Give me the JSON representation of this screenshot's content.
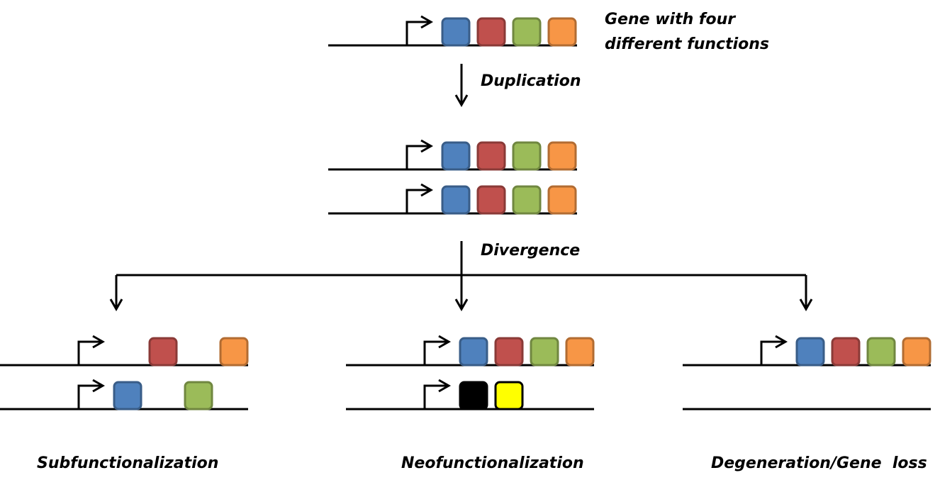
{
  "labels": {
    "gene_line1": "Gene with four",
    "gene_line2": "different functions",
    "duplication": "Duplication",
    "divergence": "Divergence",
    "subfunctionalization": "Subfunctionalization",
    "neofunctionalization": "Neofunctionalization",
    "degeneration": "Degeneration/Gene  loss"
  },
  "colors": {
    "line": "#000000",
    "func_blue": "#4f81bd",
    "func_red": "#c0504d",
    "func_green": "#9bbb59",
    "func_orange": "#f79646",
    "new_black": "#000000",
    "new_yellow": "#ffff00"
  },
  "genes": [
    {
      "id": "original",
      "boxes": [
        "blue",
        "red",
        "green",
        "orange"
      ]
    },
    {
      "id": "duplicate-a",
      "boxes": [
        "blue",
        "red",
        "green",
        "orange"
      ]
    },
    {
      "id": "duplicate-b",
      "boxes": [
        "blue",
        "red",
        "green",
        "orange"
      ]
    },
    {
      "id": "subfunc-copy-1",
      "boxes": [
        null,
        "red",
        null,
        "orange"
      ]
    },
    {
      "id": "subfunc-copy-2",
      "boxes": [
        "blue",
        null,
        "green",
        null
      ]
    },
    {
      "id": "neofunc-copy-1",
      "boxes": [
        "blue",
        "red",
        "green",
        "orange"
      ]
    },
    {
      "id": "neofunc-copy-2",
      "boxes": [
        "black",
        "yellow",
        null,
        null
      ]
    },
    {
      "id": "degen-copy-1",
      "boxes": [
        "blue",
        "red",
        "green",
        "orange"
      ]
    },
    {
      "id": "degen-copy-2",
      "boxes": []
    }
  ]
}
